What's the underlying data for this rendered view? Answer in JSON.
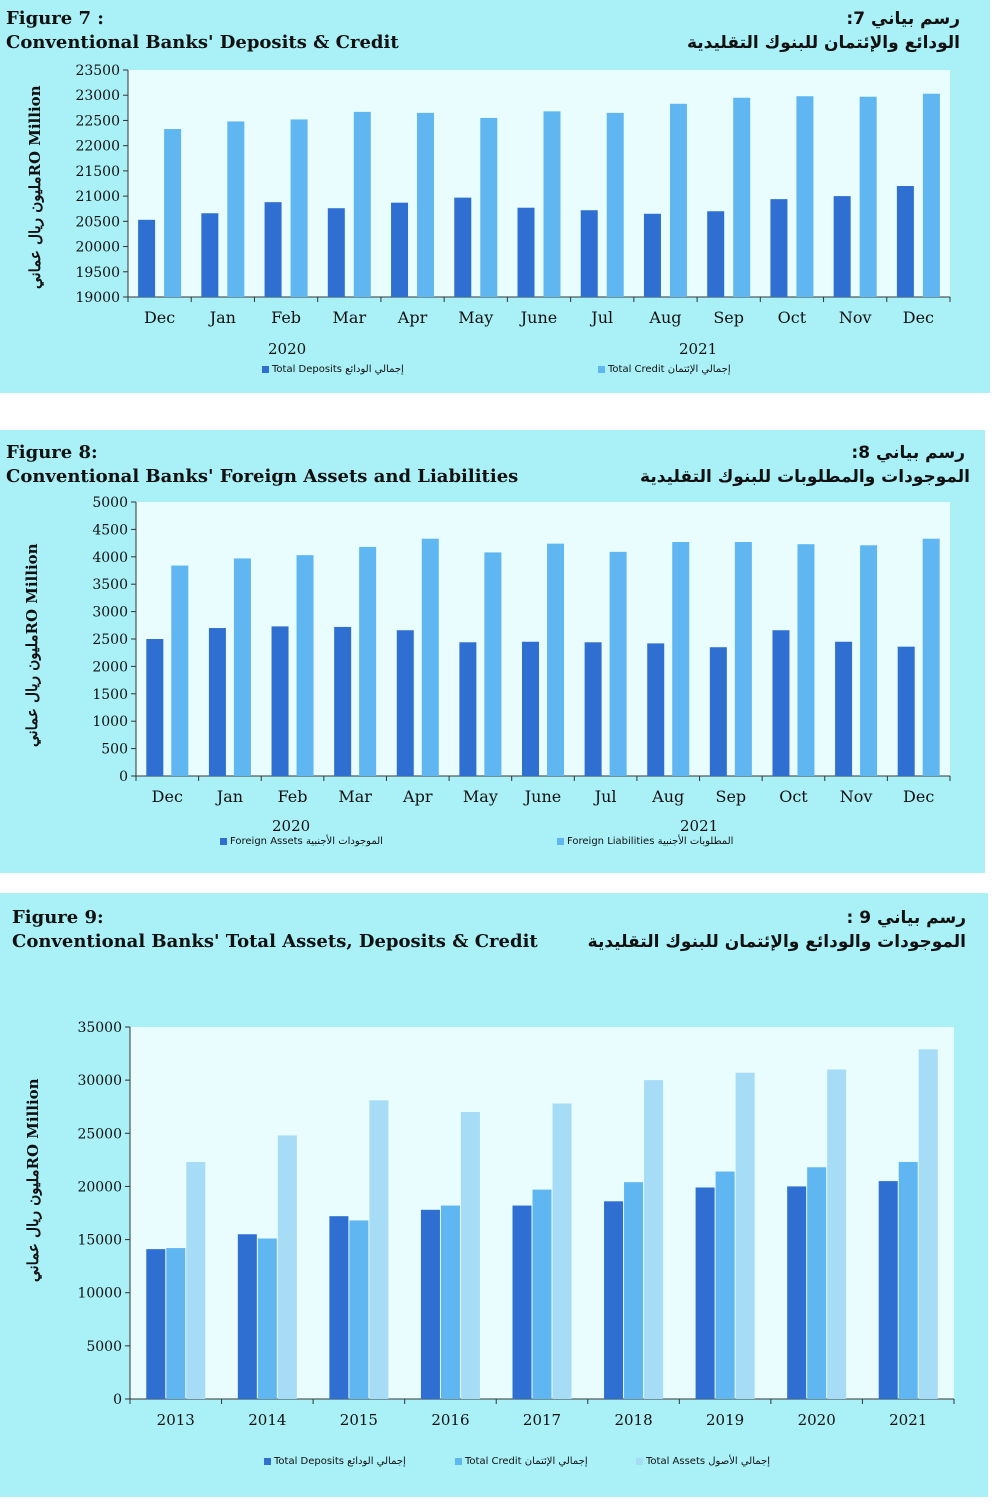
{
  "colors": {
    "panel": "#a9f0f7",
    "plot": "#e9fcfe",
    "dark": "#2f6fd1",
    "mid": "#5fb6f0",
    "light": "#a6dcf6"
  },
  "figures": [
    {
      "title_en_1": "Figure 7 :",
      "title_en_2": "Conventional Banks' Deposits & Credit",
      "title_ar_1": "رسم بياني 7:",
      "title_ar_2": "الودائع والإئتمان للبنوك التقليدية",
      "ylabel": "مليون ريال عمانيRO Million",
      "year_left": "2020",
      "year_right": "2021",
      "legend": [
        {
          "label": "Total Deposits إجمالي الودائع",
          "color_key": "dark"
        },
        {
          "label": "Total Credit إجمالي الإئتمان",
          "color_key": "mid"
        }
      ]
    },
    {
      "title_en_1": "Figure 8:",
      "title_en_2": "Conventional Banks' Foreign Assets and Liabilities",
      "title_ar_1": "رسم بياني 8:",
      "title_ar_2": "الموجودات والمطلوبات للبنوك التقليدية",
      "ylabel": "مليون ريال عمانيRO Million",
      "year_left": "2020",
      "year_right": "2021",
      "legend": [
        {
          "label": "Foreign Assets الموجودات الأجنبية",
          "color_key": "dark"
        },
        {
          "label": "Foreign Liabilities المطلوبات الأجنبية",
          "color_key": "mid"
        }
      ]
    },
    {
      "title_en_1": "Figure 9:",
      "title_en_2": "Conventional Banks' Total Assets, Deposits & Credit",
      "title_ar_1": "رسم بياني 9 :",
      "title_ar_2": "الموجودات والودائع والإئتمان للبنوك التقليدية",
      "ylabel": "مليون ريال عمانيRO Million",
      "legend": [
        {
          "label": "Total Deposits إجمالي الودائع",
          "color_key": "dark"
        },
        {
          "label": "Total Credit إجمالي الإئتمان",
          "color_key": "mid"
        },
        {
          "label": "Total Assets إجمالي الأصول",
          "color_key": "light"
        }
      ]
    }
  ],
  "chart_data": [
    {
      "type": "bar",
      "categories": [
        "Dec",
        "Jan",
        "Feb",
        "Mar",
        "Apr",
        "May",
        "June",
        "Jul",
        "Aug",
        "Sep",
        "Oct",
        "Nov",
        "Dec"
      ],
      "series": [
        {
          "name": "Total Deposits إجمالي الودائع",
          "values": [
            20530,
            20660,
            20880,
            20760,
            20870,
            20970,
            20770,
            20720,
            20650,
            20700,
            20940,
            21000,
            21200
          ]
        },
        {
          "name": "Total Credit إجمالي الإئتمان",
          "values": [
            22330,
            22480,
            22520,
            22670,
            22650,
            22550,
            22680,
            22650,
            22830,
            22950,
            22980,
            22970,
            23030
          ]
        }
      ],
      "ylim": [
        19000,
        23500
      ],
      "yticks": [
        19000,
        19500,
        20000,
        20500,
        21000,
        21500,
        22000,
        22500,
        23000,
        23500
      ],
      "grid": false
    },
    {
      "type": "bar",
      "categories": [
        "Dec",
        "Jan",
        "Feb",
        "Mar",
        "Apr",
        "May",
        "June",
        "Jul",
        "Aug",
        "Sep",
        "Oct",
        "Nov",
        "Dec"
      ],
      "series": [
        {
          "name": "Foreign Assets الموجودات الأجنبية",
          "values": [
            2500,
            2700,
            2730,
            2720,
            2660,
            2440,
            2450,
            2440,
            2420,
            2350,
            2660,
            2450,
            2360
          ]
        },
        {
          "name": "Foreign Liabilities المطلوبات الأجنبية",
          "values": [
            3840,
            3970,
            4030,
            4180,
            4330,
            4080,
            4240,
            4090,
            4270,
            4270,
            4230,
            4210,
            4330
          ]
        }
      ],
      "ylim": [
        0,
        5000
      ],
      "yticks": [
        0,
        500,
        1000,
        1500,
        2000,
        2500,
        3000,
        3500,
        4000,
        4500,
        5000
      ],
      "grid": false
    },
    {
      "type": "bar",
      "categories": [
        "2013",
        "2014",
        "2015",
        "2016",
        "2017",
        "2018",
        "2019",
        "2020",
        "2021"
      ],
      "series": [
        {
          "name": "Total Deposits إجمالي الودائع",
          "values": [
            14100,
            15500,
            17200,
            17800,
            18200,
            18600,
            19900,
            20000,
            20500
          ]
        },
        {
          "name": "Total Credit إجمالي الإئتمان",
          "values": [
            14200,
            15100,
            16800,
            18200,
            19700,
            20400,
            21400,
            21800,
            22300
          ]
        },
        {
          "name": "Total Assets إجمالي الأصول",
          "values": [
            22300,
            24800,
            28100,
            27000,
            27800,
            30000,
            30700,
            31000,
            32900
          ]
        }
      ],
      "ylim": [
        0,
        35000
      ],
      "yticks": [
        0,
        5000,
        10000,
        15000,
        20000,
        25000,
        30000,
        35000
      ],
      "grid": false
    }
  ]
}
